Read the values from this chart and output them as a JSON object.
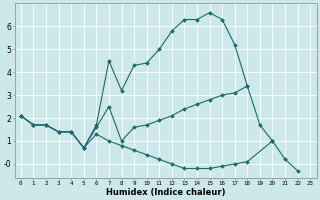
{
  "xlabel": "Humidex (Indice chaleur)",
  "bg_color": "#cce8ea",
  "grid_color": "#ffffff",
  "line_color": "#1a6b6a",
  "x_ticks": [
    0,
    1,
    2,
    3,
    4,
    5,
    6,
    7,
    8,
    9,
    10,
    11,
    12,
    13,
    14,
    15,
    16,
    17,
    18,
    19,
    20,
    21,
    22,
    23
  ],
  "ylim": [
    -0.6,
    7.0
  ],
  "xlim": [
    -0.5,
    23.5
  ],
  "line1_x": [
    0,
    1,
    2,
    3,
    4,
    5,
    6,
    7,
    8,
    9,
    10,
    11,
    12,
    13,
    14,
    15,
    16,
    17,
    18,
    19,
    20
  ],
  "line1_y": [
    2.1,
    1.7,
    1.7,
    1.4,
    1.4,
    0.7,
    1.7,
    4.5,
    3.2,
    4.3,
    4.4,
    5.0,
    5.8,
    6.3,
    6.3,
    6.6,
    6.3,
    5.2,
    3.4,
    1.7,
    1.0
  ],
  "line2_x": [
    0,
    1,
    2,
    3,
    4,
    5,
    6,
    7,
    8,
    9,
    10,
    11,
    12,
    13,
    14,
    15,
    16,
    17,
    18
  ],
  "line2_y": [
    2.1,
    1.7,
    1.7,
    1.4,
    1.4,
    0.7,
    1.6,
    2.5,
    1.0,
    1.6,
    1.7,
    1.9,
    2.1,
    2.4,
    2.6,
    2.8,
    3.0,
    3.1,
    3.4
  ],
  "line3_x": [
    0,
    1,
    2,
    3,
    4,
    5,
    6,
    7,
    8,
    9,
    10,
    11,
    12,
    13,
    14,
    15,
    16,
    17,
    18,
    20,
    21,
    22
  ],
  "line3_y": [
    2.1,
    1.7,
    1.7,
    1.4,
    1.4,
    0.7,
    1.3,
    1.0,
    0.8,
    0.6,
    0.4,
    0.2,
    0.0,
    -0.2,
    -0.2,
    -0.2,
    -0.1,
    0.0,
    0.1,
    1.0,
    0.2,
    -0.3
  ]
}
